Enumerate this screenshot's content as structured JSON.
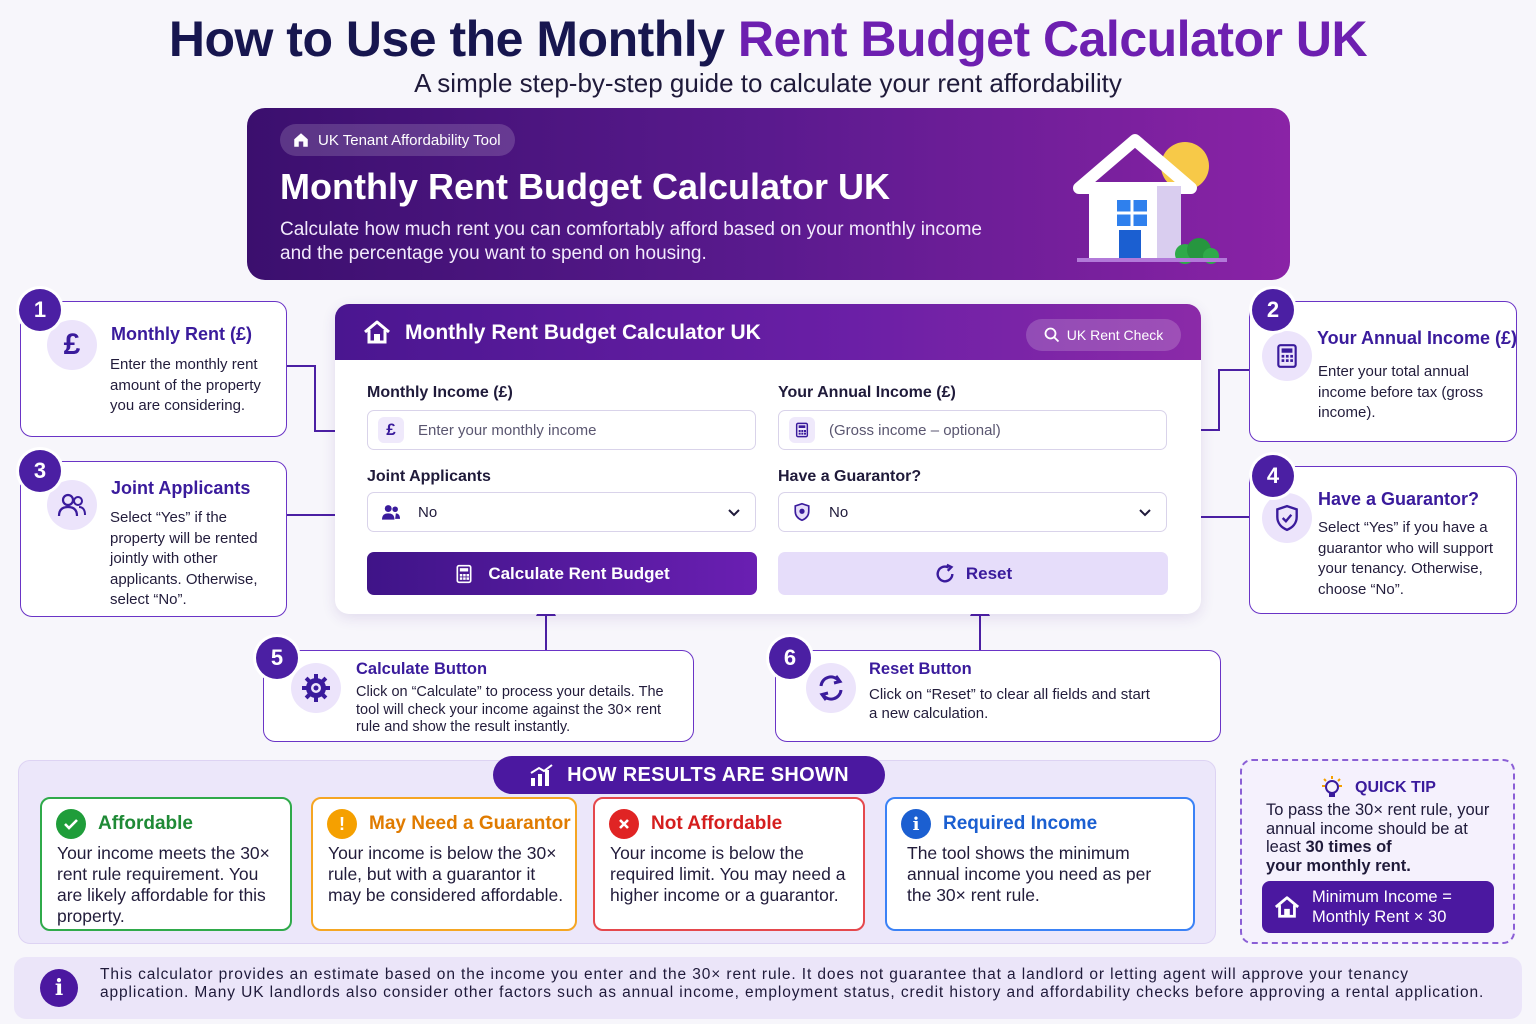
{
  "header": {
    "title_part1": "How to Use the Monthly",
    "title_part2": "Rent Budget Calculator UK",
    "subtitle": "A simple step-by-step guide to calculate your rent affordability"
  },
  "hero": {
    "badge": "UK Tenant Affordability Tool",
    "title": "Monthly Rent Budget Calculator UK",
    "description": "Calculate how much rent you can comfortably afford based on your monthly income and the percentage you want to spend on housing."
  },
  "steps": [
    {
      "number": "1",
      "title": "Monthly Rent (£)",
      "text": "Enter the monthly rent amount of the property you are considering.",
      "icon": "pound-icon"
    },
    {
      "number": "2",
      "title": "Your Annual Income (£)",
      "text": "Enter your total annual income before tax (gross income).",
      "icon": "calculator-icon"
    },
    {
      "number": "3",
      "title": "Joint Applicants",
      "text": "Select “Yes” if the property will be rented jointly with other applicants. Otherwise, select “No”.",
      "icon": "users-icon"
    },
    {
      "number": "4",
      "title": "Have a Guarantor?",
      "text": "Select “Yes” if you have a guarantor who will support your tenancy. Otherwise, choose “No”.",
      "icon": "shield-check-icon"
    },
    {
      "number": "5",
      "title": "Calculate Button",
      "text": "Click on “Calculate” to process your details. The tool will check your income against the 30× rent rule and show the result instantly.",
      "icon": "gear-icon"
    },
    {
      "number": "6",
      "title": "Reset Button",
      "text": "Click on “Reset” to clear all fields and start a new calculation.",
      "icon": "refresh-icon"
    }
  ],
  "calculator": {
    "title": "Monthly Rent Budget Calculator UK",
    "badge": "UK Rent Check",
    "monthly_income_label": "Monthly Income (£)",
    "monthly_income_placeholder": "Enter your monthly income",
    "annual_income_label": "Your Annual Income (£)",
    "annual_income_placeholder": "(Gross income – optional)",
    "joint_label": "Joint Applicants",
    "joint_value": "No",
    "guarantor_label": "Have a Guarantor?",
    "guarantor_value": "No",
    "calculate_label": "Calculate Rent Budget",
    "reset_label": "Reset"
  },
  "results": {
    "heading": "HOW RESULTS ARE SHOWN",
    "cards": [
      {
        "title": "Affordable",
        "text": "Your income meets the 30× rent rule requirement. You are likely affordable for this property.",
        "color": "#1f9d3a"
      },
      {
        "title": "May Need a Guarantor",
        "text": "Your income is below the 30× rule, but with a guarantor it may be considered affordable.",
        "color": "#f08c00"
      },
      {
        "title": "Not Affordable",
        "text": "Your income is below the required limit. You may need a higher income or a guarantor.",
        "color": "#e02424"
      },
      {
        "title": "Required Income",
        "text": "The tool shows the minimum annual income you need as per the 30× rent rule.",
        "color": "#1b5fd1"
      }
    ]
  },
  "quick_tip": {
    "heading": "QUICK TIP",
    "text_before": "To pass the 30× rent rule, your annual income should be at least",
    "text_bold1": "30 times",
    "text_mid": "of",
    "text_bold2": "your monthly rent.",
    "formula_line1": "Minimum Income =",
    "formula_line2": "Monthly Rent × 30"
  },
  "disclaimer": {
    "text": "This calculator provides an estimate based on the income you enter and the 30× rent rule. It does not guarantee that a landlord or letting agent will approve your tenancy application. Many UK landlords also consider other factors such as annual income, employment status, credit history and affordability checks before approving a rental application."
  },
  "colors": {
    "primary": "#4b18a0",
    "accent": "#6d1fb0",
    "title_dark": "#17164f"
  }
}
